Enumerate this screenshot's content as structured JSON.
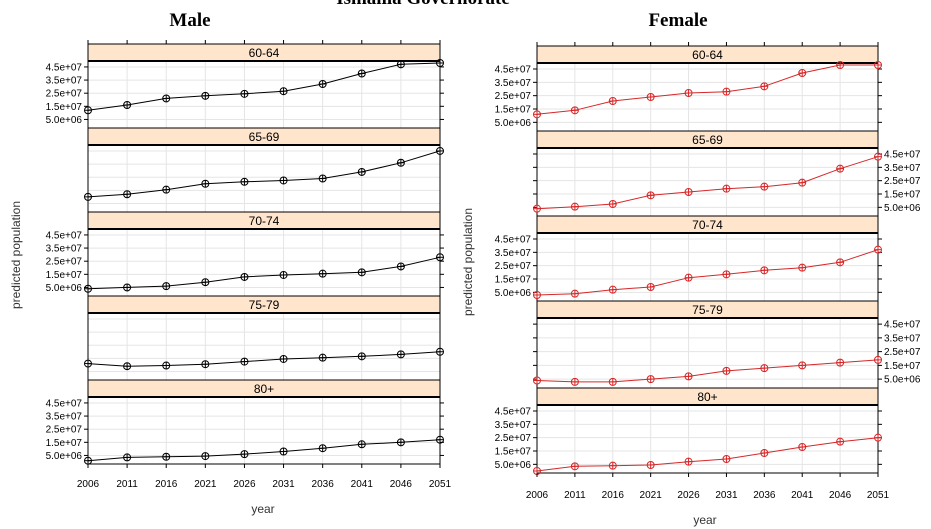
{
  "page_title": "Ismailia Governorate",
  "ylabel": "predicted population",
  "xlabel": "year",
  "x_ticks": [
    2006,
    2011,
    2016,
    2021,
    2026,
    2031,
    2036,
    2041,
    2046,
    2051
  ],
  "y_tick_labels": [
    "5.0e+06",
    "1.5e+07",
    "2.5e+07",
    "3.5e+07",
    "4.5e+07"
  ],
  "y_tick_values": [
    5000000,
    15000000,
    25000000,
    35000000,
    45000000
  ],
  "colors": {
    "strip": "#ffe5cc",
    "male": "#000000",
    "female": "#d62728",
    "grid": "#e5e5e5"
  },
  "chart_data": [
    {
      "type": "line",
      "title": "Male",
      "xlabel": "year",
      "ylabel": "predicted population",
      "ylim": [
        0,
        48000000
      ],
      "grid": true,
      "x": [
        2006,
        2011,
        2016,
        2021,
        2026,
        2031,
        2036,
        2041,
        2046,
        2051
      ],
      "panels": [
        {
          "strip": "60-64",
          "values": [
            12000000,
            16000000,
            21000000,
            23000000,
            24500000,
            26500000,
            32000000,
            40000000,
            47000000,
            49000000
          ]
        },
        {
          "strip": "65-69",
          "values": [
            10000000,
            12000000,
            15500000,
            20000000,
            21500000,
            22500000,
            24000000,
            29000000,
            36000000,
            45000000
          ]
        },
        {
          "strip": "70-74",
          "values": [
            4000000,
            5000000,
            6000000,
            9000000,
            13000000,
            14500000,
            15500000,
            16500000,
            21000000,
            28000000
          ]
        },
        {
          "strip": "75-79",
          "values": [
            11000000,
            9000000,
            9500000,
            10500000,
            12500000,
            14500000,
            15500000,
            16500000,
            18000000,
            20000000
          ]
        },
        {
          "strip": "80+",
          "values": [
            1000000,
            3500000,
            4000000,
            4500000,
            6000000,
            8000000,
            10500000,
            13500000,
            15000000,
            17000000
          ]
        }
      ]
    },
    {
      "type": "line",
      "title": "Female",
      "xlabel": "year",
      "ylabel": "predicted population",
      "ylim": [
        0,
        48000000
      ],
      "grid": true,
      "x": [
        2006,
        2011,
        2016,
        2021,
        2026,
        2031,
        2036,
        2041,
        2046,
        2051
      ],
      "panels": [
        {
          "strip": "60-64",
          "values": [
            11000000,
            14000000,
            21000000,
            24000000,
            27000000,
            28000000,
            32000000,
            42000000,
            48000000,
            49000000
          ]
        },
        {
          "strip": "65-69",
          "values": [
            4000000,
            5500000,
            7500000,
            14000000,
            16500000,
            19000000,
            20500000,
            23500000,
            34000000,
            43000000
          ]
        },
        {
          "strip": "70-74",
          "values": [
            3000000,
            4000000,
            7000000,
            9000000,
            16000000,
            18500000,
            21500000,
            23500000,
            27500000,
            37000000
          ]
        },
        {
          "strip": "75-79",
          "values": [
            4000000,
            3000000,
            3000000,
            5000000,
            7000000,
            11000000,
            13000000,
            15000000,
            17000000,
            19000000
          ]
        },
        {
          "strip": "80+",
          "values": [
            0,
            3500000,
            4000000,
            4500000,
            7000000,
            9000000,
            13500000,
            18000000,
            22000000,
            25000000
          ]
        }
      ]
    }
  ]
}
